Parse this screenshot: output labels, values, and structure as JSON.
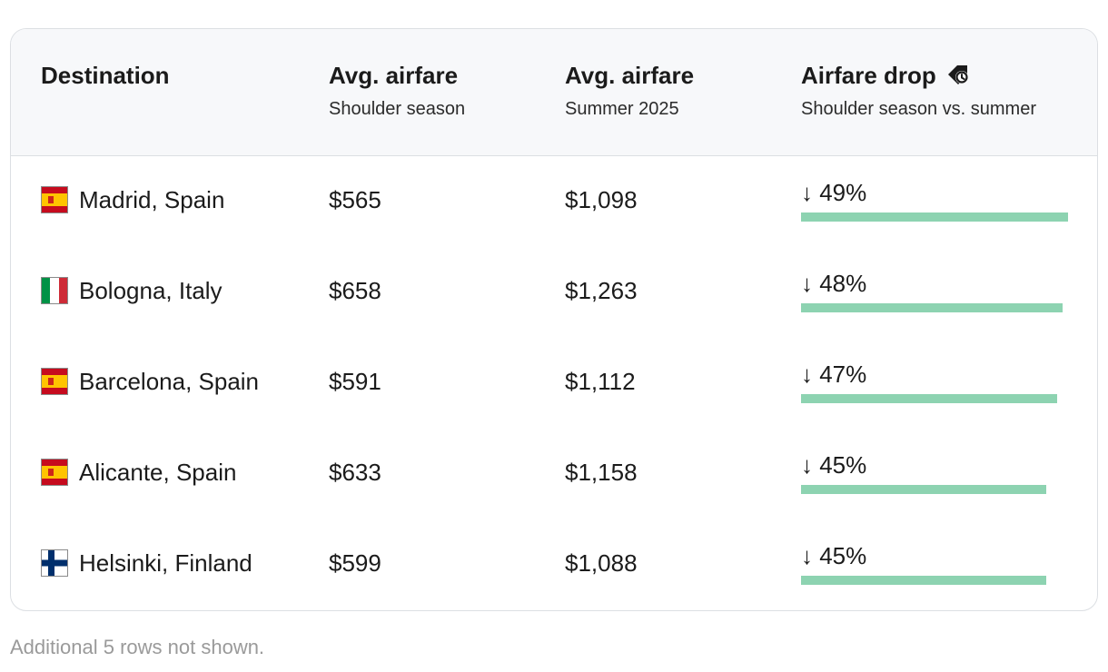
{
  "table": {
    "headers": [
      {
        "title": "Destination",
        "subtitle": ""
      },
      {
        "title": "Avg. airfare",
        "subtitle": "Shoulder season"
      },
      {
        "title": "Avg. airfare",
        "subtitle": "Summer 2025"
      },
      {
        "title": "Airfare drop",
        "subtitle": "Shoulder season vs. summer",
        "icon": "price-tag-icon"
      }
    ],
    "rows": [
      {
        "flag": "spain",
        "destination": "Madrid, Spain",
        "shoulder": "$565",
        "summer": "$1,098",
        "drop_label": "↓ 49%",
        "drop_pct": 49
      },
      {
        "flag": "italy",
        "destination": "Bologna, Italy",
        "shoulder": "$658",
        "summer": "$1,263",
        "drop_label": "↓ 48%",
        "drop_pct": 48
      },
      {
        "flag": "spain",
        "destination": "Barcelona, Spain",
        "shoulder": "$591",
        "summer": "$1,112",
        "drop_label": "↓ 47%",
        "drop_pct": 47
      },
      {
        "flag": "spain",
        "destination": "Alicante, Spain",
        "shoulder": "$633",
        "summer": "$1,158",
        "drop_label": "↓ 45%",
        "drop_pct": 45
      },
      {
        "flag": "finland",
        "destination": "Helsinki, Finland",
        "shoulder": "$599",
        "summer": "$1,088",
        "drop_label": "↓ 45%",
        "drop_pct": 45
      }
    ]
  },
  "colors": {
    "bar": "#8dd3b1",
    "header_bg": "#f7f8fa",
    "border": "#dcdfe3"
  },
  "footnote": "Additional 5 rows not shown."
}
